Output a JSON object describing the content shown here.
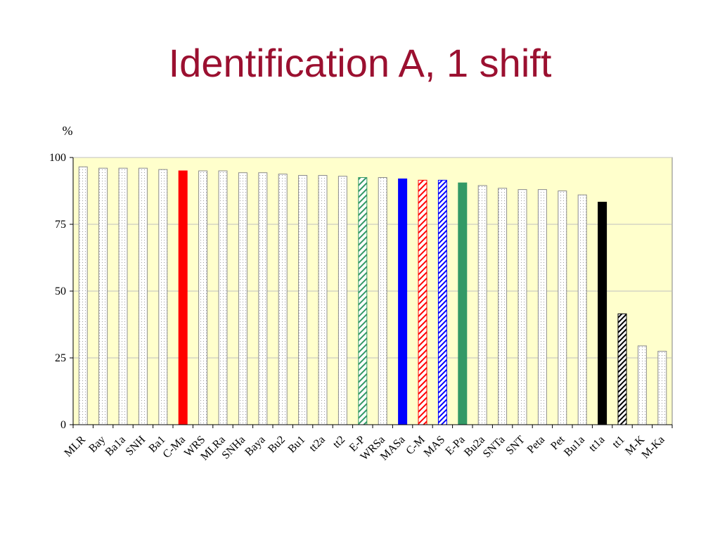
{
  "title": "Identification A, 1 shift",
  "chart_data": {
    "type": "bar",
    "ylabel": "%",
    "ylim": [
      0,
      100
    ],
    "yticks": [
      0,
      25,
      50,
      75,
      100
    ],
    "grid": true,
    "plot_background": "#ffffcc",
    "categories": [
      "MLR",
      "Bay",
      "Ba1a",
      "SNH",
      "Ba1",
      "C-Ma",
      "WRS",
      "MLRa",
      "SNHa",
      "Baya",
      "Bu2",
      "Bu1",
      "tt2a",
      "tt2",
      "E-P",
      "WRSa",
      "MASa",
      "C-M",
      "MAS",
      "E-Pa",
      "Bu2a",
      "SNTa",
      "SNT",
      "Peta",
      "Pet",
      "Bu1a",
      "tt1a",
      "tt1",
      "M-K",
      "M-Ka"
    ],
    "values": [
      96.5,
      96,
      96,
      96,
      95.5,
      95,
      95,
      95,
      94.3,
      94.3,
      93.8,
      93.3,
      93.3,
      93,
      92.5,
      92.5,
      92,
      91.5,
      91.5,
      90.5,
      89.5,
      88.5,
      88,
      88,
      87.5,
      86,
      83.3,
      41.5,
      29.5,
      27.5
    ],
    "styles": [
      "dotted",
      "dotted",
      "dotted",
      "dotted",
      "dotted",
      "solid-red",
      "dotted",
      "dotted",
      "dotted",
      "dotted",
      "dotted",
      "dotted",
      "dotted",
      "dotted",
      "hatch-green",
      "dotted",
      "solid-blue",
      "hatch-red",
      "hatch-blue",
      "solid-green",
      "dotted",
      "dotted",
      "dotted",
      "dotted",
      "dotted",
      "dotted",
      "solid-black",
      "hatch-black",
      "dotted",
      "dotted"
    ],
    "colors": {
      "red": "#ff0000",
      "blue": "#0000ff",
      "green": "#339966",
      "black": "#000000",
      "title": "#9b1030"
    }
  }
}
